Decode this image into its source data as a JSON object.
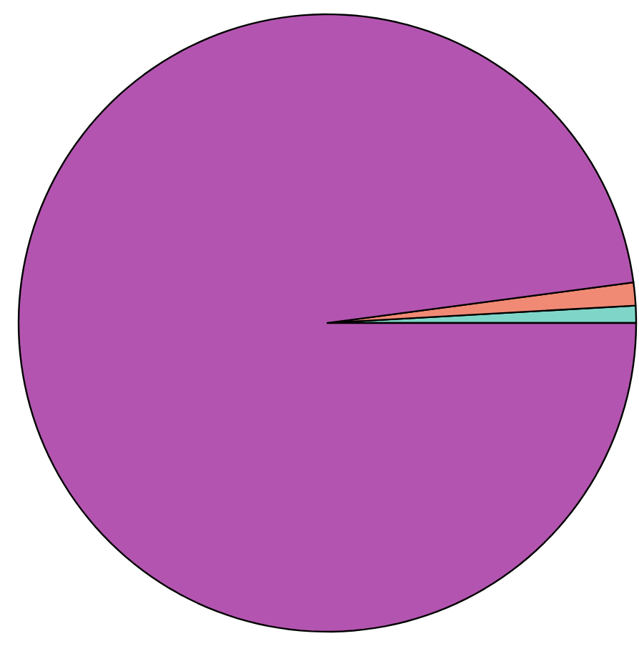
{
  "chart_data": {
    "type": "pie",
    "categories": [
      null,
      null,
      null
    ],
    "values": [
      0.9,
      1.2,
      97.9
    ],
    "colors": [
      "#7fd6c8",
      "#f08a74",
      "#b355b0"
    ]
  }
}
